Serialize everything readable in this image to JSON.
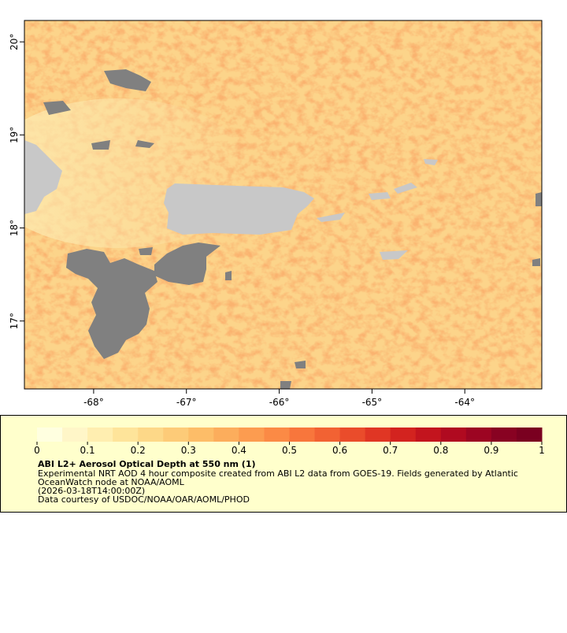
{
  "map": {
    "xaxis": {
      "lim": [
        -68.746,
        -63.17
      ],
      "ticks": [
        {
          "value": -68,
          "label": "-68°"
        },
        {
          "value": -67,
          "label": "-67°"
        },
        {
          "value": -66,
          "label": "-66°"
        },
        {
          "value": -65,
          "label": "-65°"
        },
        {
          "value": -64,
          "label": "-64°"
        }
      ]
    },
    "yaxis": {
      "lim": [
        16.27,
        20.23
      ],
      "ticks": [
        {
          "value": 17,
          "label": "17°"
        },
        {
          "value": 18,
          "label": "18°"
        },
        {
          "value": 19,
          "label": "19°"
        },
        {
          "value": 20,
          "label": "20°"
        }
      ]
    }
  },
  "legend": {
    "title": "ABI L2+ Aerosol Optical Depth at 550 nm (1)",
    "lines": [
      "Experimental NRT AOD 4 hour composite created from ABI L2 data from GOES-19. Fields generated by Atlantic",
      "OceanWatch node at NOAA/AOML",
      "(2026-03-18T14:00:00Z)",
      "Data courtesy of USDOC/NOAA/OAR/AOML/PHOD"
    ],
    "colorbar": {
      "lim": [
        0,
        1
      ],
      "ticks": [
        0,
        0.1,
        0.2,
        0.3,
        0.4,
        0.5,
        0.6,
        0.7,
        0.8,
        0.9,
        1
      ],
      "colors": [
        "#ffffe0",
        "#fff6c8",
        "#ffeeb0",
        "#fee49a",
        "#fdd888",
        "#fdcb78",
        "#fdbd68",
        "#fcad5c",
        "#fc9c50",
        "#fb8a45",
        "#f8763c",
        "#f26233",
        "#ea4c2b",
        "#e03624",
        "#d3231f",
        "#c3141e",
        "#b00a20",
        "#9c0522",
        "#880222",
        "#7a0020"
      ]
    }
  }
}
